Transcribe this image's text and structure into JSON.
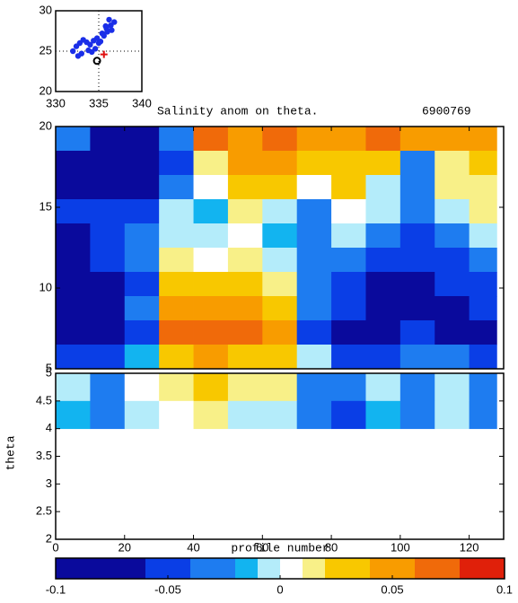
{
  "chart_data": [
    {
      "type": "scatter",
      "xlim": [
        330,
        340
      ],
      "xticks": [
        330,
        335,
        340
      ],
      "ylim": [
        20,
        30
      ],
      "yticks": [
        20,
        25,
        30
      ],
      "grid": true,
      "series": [
        {
          "color": "#1a2ee8",
          "marker": "dot",
          "x": [
            332.0,
            332.4,
            332.8,
            333.2,
            333.6,
            334.0,
            334.4,
            334.8,
            335.2,
            335.6,
            336.0,
            336.4,
            336.8,
            336.2,
            335.8,
            335.4,
            335.0,
            334.6,
            333.8,
            333.0,
            332.6,
            334.2,
            335.9,
            336.5
          ],
          "values": [
            25.0,
            25.6,
            26.0,
            26.4,
            26.1,
            25.8,
            26.3,
            26.6,
            26.2,
            26.9,
            27.4,
            28.2,
            28.6,
            28.9,
            28.1,
            27.2,
            26.0,
            25.3,
            25.1,
            24.7,
            24.4,
            24.9,
            27.8,
            27.6
          ]
        },
        {
          "color": "#e01010",
          "marker": "plus",
          "x": [
            335.6
          ],
          "values": [
            24.6
          ]
        },
        {
          "color": "#000000",
          "marker": "circle",
          "x": [
            334.8
          ],
          "values": [
            23.8
          ]
        }
      ]
    },
    {
      "type": "heatmap",
      "title": "Salinity anom on theta.",
      "subtitle": "6900769",
      "xlabel": "profile number",
      "ylabel": "theta",
      "xlim": [
        0,
        130
      ],
      "xticks": [
        0,
        20,
        40,
        60,
        80,
        100,
        120
      ],
      "ylim": [
        5,
        20
      ],
      "yticks": [
        5,
        10,
        15,
        20
      ],
      "lower_ylim": [
        2,
        5
      ],
      "lower_yticks": [
        2,
        2.5,
        3,
        3.5,
        4,
        4.5,
        5
      ],
      "x": [
        0,
        10,
        20,
        30,
        40,
        50,
        60,
        70,
        80,
        90,
        100,
        110,
        120,
        128
      ],
      "y": [
        20,
        18.5,
        17,
        15.5,
        14,
        12.5,
        11,
        9.5,
        8,
        6.5,
        5,
        4.5,
        4
      ],
      "values": [
        [
          -0.03,
          -0.07,
          -0.06,
          -0.03,
          0.07,
          0.05,
          0.08,
          0.06,
          0.05,
          0.08,
          0.06,
          0.05,
          0.05
        ],
        [
          -0.06,
          -0.08,
          -0.07,
          -0.04,
          0.02,
          0.05,
          0.06,
          0.04,
          0.04,
          0.03,
          -0.02,
          0.02,
          0.04
        ],
        [
          -0.07,
          -0.08,
          -0.06,
          -0.02,
          0.01,
          0.04,
          0.03,
          0.01,
          0.03,
          0.0,
          -0.03,
          0.02,
          0.02
        ],
        [
          -0.05,
          -0.05,
          -0.04,
          0.0,
          -0.01,
          0.02,
          0.0,
          -0.02,
          0.01,
          0.0,
          -0.03,
          0.0,
          0.02
        ],
        [
          -0.06,
          -0.04,
          -0.03,
          0.0,
          0.0,
          0.01,
          -0.01,
          -0.03,
          0.0,
          -0.03,
          -0.04,
          -0.02,
          0.0
        ],
        [
          -0.07,
          -0.05,
          -0.03,
          0.02,
          0.01,
          0.02,
          0.0,
          -0.03,
          -0.02,
          -0.04,
          -0.05,
          -0.04,
          -0.02
        ],
        [
          -0.07,
          -0.06,
          -0.04,
          0.04,
          0.03,
          0.03,
          0.02,
          -0.03,
          -0.04,
          -0.06,
          -0.06,
          -0.05,
          -0.04
        ],
        [
          -0.06,
          -0.06,
          -0.03,
          0.05,
          0.06,
          0.05,
          0.04,
          -0.03,
          -0.05,
          -0.07,
          -0.06,
          -0.06,
          -0.05
        ],
        [
          -0.08,
          -0.07,
          -0.04,
          0.08,
          0.08,
          0.07,
          0.06,
          -0.04,
          -0.08,
          -0.09,
          -0.05,
          -0.07,
          -0.06
        ],
        [
          -0.05,
          -0.04,
          -0.01,
          0.04,
          0.05,
          0.04,
          0.03,
          0.0,
          -0.05,
          -0.04,
          -0.02,
          -0.03,
          -0.04
        ],
        [
          0.0,
          -0.02,
          0.01,
          0.02,
          0.03,
          0.02,
          0.02,
          -0.02,
          -0.03,
          0.0,
          -0.02,
          0.0,
          -0.02
        ],
        [
          -0.01,
          -0.03,
          0.0,
          0.01,
          0.02,
          0.0,
          0.0,
          -0.02,
          -0.04,
          -0.01,
          -0.02,
          0.0,
          -0.03
        ]
      ],
      "levels": [
        -0.1,
        -0.06,
        -0.04,
        -0.02,
        -0.01,
        0,
        0.01,
        0.02,
        0.04,
        0.06,
        0.08,
        0.1
      ],
      "colors": [
        "#0a0a9c",
        "#0a3ee6",
        "#1e7cf0",
        "#12b4f0",
        "#b4ecfa",
        "#ffffff",
        "#f8f088",
        "#f8c800",
        "#f89c00",
        "#f06a0a",
        "#e0200a"
      ],
      "cticks": [
        -0.1,
        -0.05,
        0,
        0.05,
        0.1
      ]
    }
  ]
}
